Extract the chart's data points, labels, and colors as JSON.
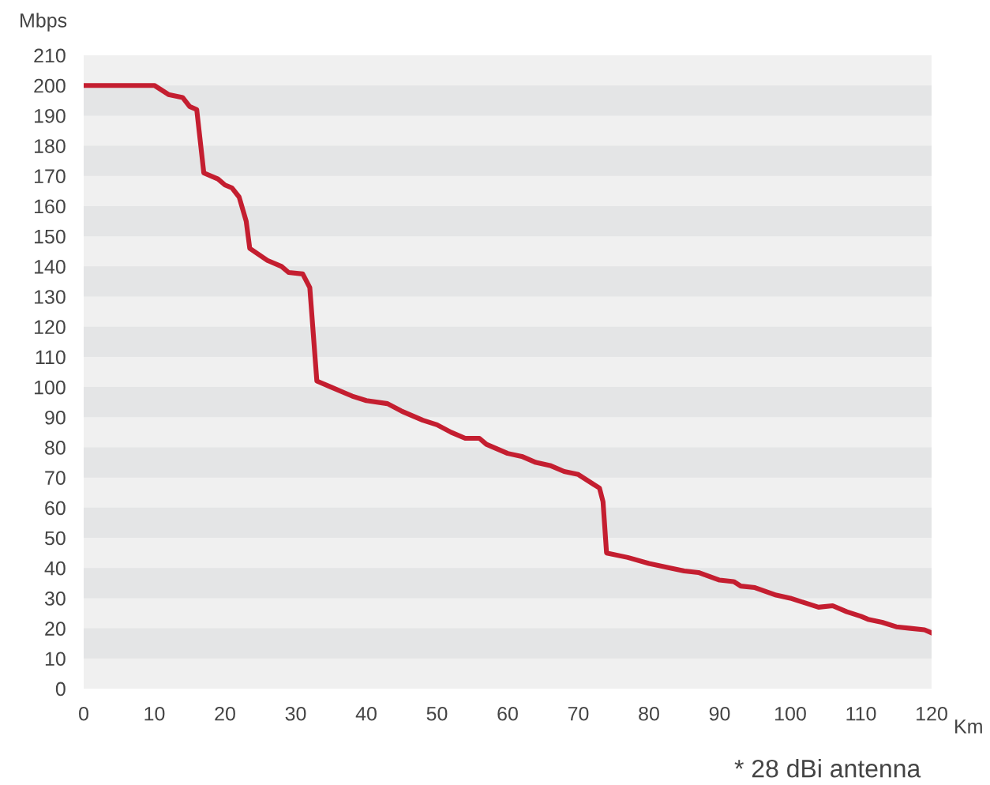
{
  "chart_data": {
    "type": "line",
    "ylabel": "Mbps",
    "xlabel": "Km",
    "annotations": [
      "* 28 dBi antenna"
    ],
    "series": [
      {
        "color": "#c41e30",
        "x": [
          0,
          10,
          12,
          14,
          15,
          16,
          17,
          19,
          20,
          21,
          22,
          23,
          23.5,
          26,
          28,
          29,
          31,
          32,
          33,
          35,
          37,
          38,
          40,
          43,
          45,
          48,
          50,
          52,
          54,
          56,
          57,
          60,
          62,
          64,
          66,
          68,
          70,
          72,
          73,
          73.5,
          74,
          77,
          80,
          83,
          85,
          87,
          90,
          92,
          93,
          95,
          98,
          100,
          102,
          104,
          106,
          108,
          110,
          111,
          113,
          115,
          117,
          119,
          120
        ],
        "values": [
          200,
          200,
          197,
          196,
          193,
          192,
          171,
          169,
          167,
          166,
          163,
          155,
          146,
          142,
          140,
          138,
          137.5,
          133,
          102,
          100,
          98,
          97,
          95.5,
          94.5,
          92,
          89,
          87.5,
          85,
          83,
          83,
          81,
          78,
          77,
          75,
          74,
          72,
          71,
          68,
          66.5,
          62,
          45,
          43.5,
          41.5,
          40,
          39,
          38.5,
          36,
          35.5,
          34,
          33.5,
          31,
          30,
          28.5,
          27,
          27.5,
          25.5,
          24,
          23,
          22,
          20.5,
          20,
          19.5,
          18.5
        ]
      }
    ],
    "xlim": [
      0,
      120
    ],
    "xticks": [
      0,
      10,
      20,
      30,
      40,
      50,
      60,
      70,
      80,
      90,
      100,
      110,
      120
    ],
    "ylim": [
      0,
      210
    ],
    "yticks": [
      0,
      10,
      20,
      30,
      40,
      50,
      60,
      70,
      80,
      90,
      100,
      110,
      120,
      130,
      140,
      150,
      160,
      170,
      180,
      190,
      200,
      210
    ],
    "bands": [
      {
        "axis": "y",
        "from": 10,
        "to": 20,
        "color": "#e4e5e6"
      },
      {
        "axis": "y",
        "from": 30,
        "to": 40,
        "color": "#e4e5e6"
      },
      {
        "axis": "y",
        "from": 50,
        "to": 60,
        "color": "#e4e5e6"
      },
      {
        "axis": "y",
        "from": 70,
        "to": 80,
        "color": "#e4e5e6"
      },
      {
        "axis": "y",
        "from": 90,
        "to": 100,
        "color": "#e4e5e6"
      },
      {
        "axis": "y",
        "from": 110,
        "to": 120,
        "color": "#e4e5e6"
      },
      {
        "axis": "y",
        "from": 130,
        "to": 140,
        "color": "#e4e5e6"
      },
      {
        "axis": "y",
        "from": 150,
        "to": 160,
        "color": "#e4e5e6"
      },
      {
        "axis": "y",
        "from": 170,
        "to": 180,
        "color": "#e4e5e6"
      },
      {
        "axis": "y",
        "from": 190,
        "to": 200,
        "color": "#e4e5e6"
      }
    ],
    "line_style": "solid",
    "marker": "none",
    "legend": false
  }
}
